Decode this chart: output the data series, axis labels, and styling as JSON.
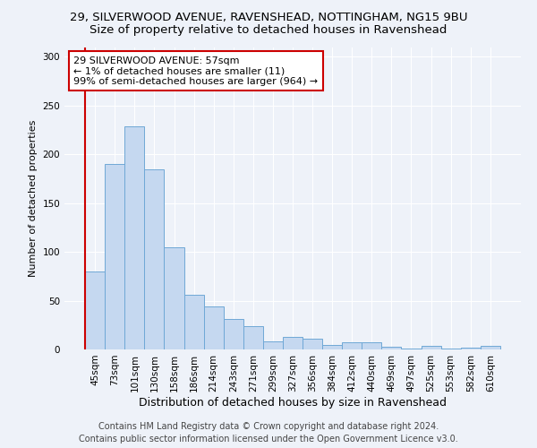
{
  "title1": "29, SILVERWOOD AVENUE, RAVENSHEAD, NOTTINGHAM, NG15 9BU",
  "title2": "Size of property relative to detached houses in Ravenshead",
  "xlabel": "Distribution of detached houses by size in Ravenshead",
  "ylabel": "Number of detached properties",
  "categories": [
    "45sqm",
    "73sqm",
    "101sqm",
    "130sqm",
    "158sqm",
    "186sqm",
    "214sqm",
    "243sqm",
    "271sqm",
    "299sqm",
    "327sqm",
    "356sqm",
    "384sqm",
    "412sqm",
    "440sqm",
    "469sqm",
    "497sqm",
    "525sqm",
    "553sqm",
    "582sqm",
    "610sqm"
  ],
  "values": [
    80,
    190,
    229,
    185,
    105,
    56,
    44,
    31,
    24,
    8,
    13,
    11,
    5,
    7,
    7,
    3,
    1,
    4,
    1,
    2,
    4
  ],
  "bar_color": "#c5d8f0",
  "bar_edge_color": "#6fa8d6",
  "annotation_title": "29 SILVERWOOD AVENUE: 57sqm",
  "annotation_line1": "← 1% of detached houses are smaller (11)",
  "annotation_line2": "99% of semi-detached houses are larger (964) →",
  "annotation_box_color": "#ffffff",
  "annotation_box_edge": "#cc0000",
  "vline_color": "#cc0000",
  "ylim": [
    0,
    310
  ],
  "yticks": [
    0,
    50,
    100,
    150,
    200,
    250,
    300
  ],
  "footer1": "Contains HM Land Registry data © Crown copyright and database right 2024.",
  "footer2": "Contains public sector information licensed under the Open Government Licence v3.0.",
  "bg_color": "#eef2f9",
  "grid_color": "#ffffff",
  "title1_fontsize": 9.5,
  "title2_fontsize": 9.5,
  "xlabel_fontsize": 9,
  "ylabel_fontsize": 8,
  "tick_fontsize": 7.5,
  "footer_fontsize": 7,
  "ann_fontsize": 8
}
